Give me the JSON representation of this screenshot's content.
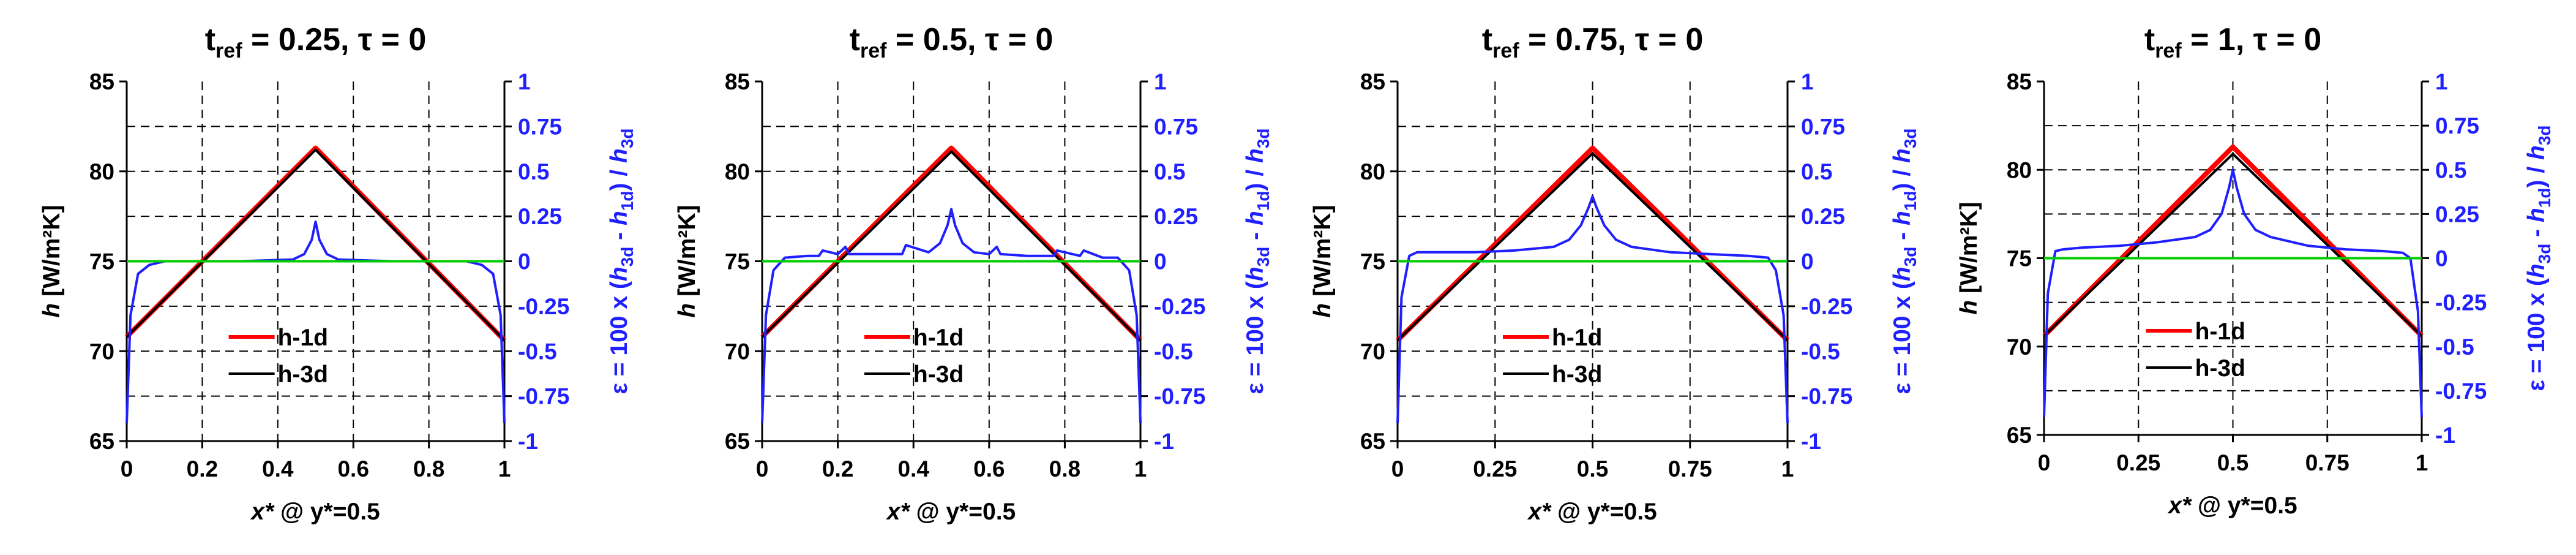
{
  "colors": {
    "h1d": "#ff0000",
    "h3d": "#000000",
    "eps": "#1f1fff",
    "zero": "#00cc00",
    "grid": "#000000"
  },
  "chart_data": [
    {
      "type": "line",
      "title": {
        "main": "t",
        "sub": "ref",
        "rest": " = 0.25, τ = 0"
      },
      "xticks": [
        "0",
        "0.2",
        "0.4",
        "0.6",
        "0.8",
        "1"
      ],
      "xtick_values": [
        0,
        0.2,
        0.4,
        0.6,
        0.8,
        1
      ],
      "xlim": [
        0,
        1
      ],
      "ylim": [
        65,
        85
      ],
      "y2lim": [
        -1,
        1
      ],
      "yticks": [
        "65",
        "70",
        "75",
        "80",
        "85"
      ],
      "y2ticks": [
        "-1",
        "-0.75",
        "-0.5",
        "-0.25",
        "0",
        "0.25",
        "0.5",
        "0.75",
        "1"
      ],
      "xlabel": {
        "var": "x*",
        "rest": " @ y*=0.5"
      },
      "ylabel": {
        "var": "h",
        "rest": " [W/m²K]"
      },
      "y2label": {
        "pre": "ε = 100 x (",
        "v1": "h",
        "s1": "3d",
        "mid": " - ",
        "v2": "h",
        "s2": "1d",
        "post": ") / ",
        "v3": "h",
        "s3": "3d"
      },
      "legend": [
        "h-1d",
        "h-3d"
      ],
      "legend_position": "center-bottom",
      "series": [
        {
          "name": "h-1d",
          "axis": "left",
          "x": [
            0,
            0.5,
            1
          ],
          "values": [
            70.8,
            81.3,
            70.6
          ]
        },
        {
          "name": "h-3d",
          "axis": "left",
          "x": [
            0,
            0.5,
            1
          ],
          "values": [
            70.8,
            81.2,
            70.6
          ]
        },
        {
          "name": "ε",
          "axis": "right",
          "x": [
            0,
            0.01,
            0.03,
            0.06,
            0.1,
            0.3,
            0.44,
            0.47,
            0.49,
            0.5,
            0.51,
            0.53,
            0.56,
            0.7,
            0.9,
            0.94,
            0.97,
            0.99,
            1
          ],
          "values": [
            -0.9,
            -0.3,
            -0.07,
            -0.02,
            0,
            0,
            0.01,
            0.04,
            0.12,
            0.22,
            0.12,
            0.04,
            0.01,
            0,
            0,
            -0.02,
            -0.07,
            -0.3,
            -0.9
          ]
        },
        {
          "name": "ε = 0",
          "axis": "right",
          "x": [
            0,
            1
          ],
          "values": [
            0,
            0
          ]
        }
      ]
    },
    {
      "type": "line",
      "title": {
        "main": "t",
        "sub": "ref",
        "rest": " = 0.5, τ = 0"
      },
      "xticks": [
        "0",
        "0.2",
        "0.4",
        "0.6",
        "0.8",
        "1"
      ],
      "xtick_values": [
        0,
        0.2,
        0.4,
        0.6,
        0.8,
        1
      ],
      "xlim": [
        0,
        1
      ],
      "ylim": [
        65,
        85
      ],
      "y2lim": [
        -1,
        1
      ],
      "yticks": [
        "65",
        "70",
        "75",
        "80",
        "85"
      ],
      "y2ticks": [
        "-1",
        "-0.75",
        "-0.5",
        "-0.25",
        "0",
        "0.25",
        "0.5",
        "0.75",
        "1"
      ],
      "xlabel": {
        "var": "x*",
        "rest": " @ y*=0.5"
      },
      "ylabel": {
        "var": "h",
        "rest": " [W/m²K]"
      },
      "y2label": {
        "pre": "ε = 100 x (",
        "v1": "h",
        "s1": "3d",
        "mid": " - ",
        "v2": "h",
        "s2": "1d",
        "post": ") / ",
        "v3": "h",
        "s3": "3d"
      },
      "legend": [
        "h-1d",
        "h-3d"
      ],
      "legend_position": "center-bottom",
      "series": [
        {
          "name": "h-1d",
          "axis": "left",
          "x": [
            0,
            0.5,
            1
          ],
          "values": [
            70.8,
            81.3,
            70.6
          ]
        },
        {
          "name": "h-3d",
          "axis": "left",
          "x": [
            0,
            0.5,
            1
          ],
          "values": [
            70.8,
            81.1,
            70.6
          ]
        },
        {
          "name": "ε",
          "axis": "right",
          "x": [
            0,
            0.01,
            0.03,
            0.06,
            0.12,
            0.15,
            0.16,
            0.2,
            0.22,
            0.23,
            0.3,
            0.37,
            0.38,
            0.44,
            0.47,
            0.49,
            0.5,
            0.51,
            0.53,
            0.56,
            0.6,
            0.62,
            0.63,
            0.7,
            0.77,
            0.78,
            0.84,
            0.85,
            0.9,
            0.94,
            0.97,
            0.99,
            1
          ],
          "values": [
            -0.9,
            -0.3,
            -0.05,
            0.02,
            0.03,
            0.03,
            0.06,
            0.04,
            0.08,
            0.04,
            0.04,
            0.04,
            0.09,
            0.05,
            0.1,
            0.2,
            0.29,
            0.2,
            0.1,
            0.05,
            0.04,
            0.08,
            0.04,
            0.03,
            0.03,
            0.06,
            0.03,
            0.06,
            0.02,
            0.02,
            -0.05,
            -0.3,
            -0.9
          ]
        },
        {
          "name": "ε = 0",
          "axis": "right",
          "x": [
            0,
            1
          ],
          "values": [
            0,
            0
          ]
        }
      ]
    },
    {
      "type": "line",
      "title": {
        "main": "t",
        "sub": "ref",
        "rest": " = 0.75, τ = 0"
      },
      "xticks": [
        "0",
        "0.25",
        "0.5",
        "0.75",
        "1"
      ],
      "xtick_values": [
        0,
        0.25,
        0.5,
        0.75,
        1
      ],
      "xlim": [
        0,
        1
      ],
      "ylim": [
        65,
        85
      ],
      "y2lim": [
        -1,
        1
      ],
      "yticks": [
        "65",
        "70",
        "75",
        "80",
        "85"
      ],
      "y2ticks": [
        "-1",
        "-0.75",
        "-0.5",
        "-0.25",
        "0",
        "0.25",
        "0.5",
        "0.75",
        "1"
      ],
      "xlabel": {
        "var": "x*",
        "rest": " @ y*=0.5"
      },
      "ylabel": {
        "var": "h",
        "rest": " [W/m²K]"
      },
      "y2label": {
        "pre": "ε = 100 x (",
        "v1": "h",
        "s1": "3d",
        "mid": " - ",
        "v2": "h",
        "s2": "1d",
        "post": ") / ",
        "v3": "h",
        "s3": "3d"
      },
      "legend": [
        "h-1d",
        "h-3d"
      ],
      "legend_position": "center-bottom",
      "series": [
        {
          "name": "h-1d",
          "axis": "left",
          "x": [
            0,
            0.5,
            1
          ],
          "values": [
            70.6,
            81.3,
            70.6
          ]
        },
        {
          "name": "h-3d",
          "axis": "left",
          "x": [
            0,
            0.5,
            1
          ],
          "values": [
            70.6,
            81.0,
            70.6
          ]
        },
        {
          "name": "ε",
          "axis": "right",
          "x": [
            0,
            0.01,
            0.03,
            0.05,
            0.1,
            0.2,
            0.3,
            0.4,
            0.44,
            0.47,
            0.49,
            0.5,
            0.51,
            0.53,
            0.56,
            0.6,
            0.7,
            0.8,
            0.9,
            0.95,
            0.97,
            0.99,
            1
          ],
          "values": [
            -0.9,
            -0.2,
            0.03,
            0.05,
            0.05,
            0.05,
            0.06,
            0.08,
            0.12,
            0.2,
            0.3,
            0.36,
            0.3,
            0.2,
            0.12,
            0.08,
            0.05,
            0.04,
            0.03,
            0.02,
            -0.05,
            -0.3,
            -0.9
          ]
        },
        {
          "name": "ε = 0",
          "axis": "right",
          "x": [
            0,
            1
          ],
          "values": [
            0,
            0
          ]
        }
      ]
    },
    {
      "type": "line",
      "title": {
        "main": "t",
        "sub": "ref",
        "rest": " = 1, τ = 0"
      },
      "xticks": [
        "0",
        "0.25",
        "0.5",
        "0.75",
        "1"
      ],
      "xtick_values": [
        0,
        0.25,
        0.5,
        0.75,
        1
      ],
      "xlim": [
        0,
        1
      ],
      "ylim": [
        65,
        85
      ],
      "y2lim": [
        -1,
        1
      ],
      "yticks": [
        "65",
        "70",
        "75",
        "80",
        "85"
      ],
      "y2ticks": [
        "-1",
        "-0.75",
        "-0.5",
        "-0.25",
        "0",
        "0.25",
        "0.5",
        "0.75",
        "1"
      ],
      "xlabel": {
        "var": "x*",
        "rest": " @ y*=0.5"
      },
      "ylabel": {
        "var": "h",
        "rest": " [W/m²K]"
      },
      "y2label": {
        "pre": "ε = 100 x (",
        "v1": "h",
        "s1": "3d",
        "mid": " - ",
        "v2": "h",
        "s2": "1d",
        "post": ") / ",
        "v3": "h",
        "s3": "3d"
      },
      "legend": [
        "h-1d",
        "h-3d"
      ],
      "legend_position": "center-bottom",
      "series": [
        {
          "name": "h-1d",
          "axis": "left",
          "x": [
            0,
            0.5,
            1
          ],
          "values": [
            70.6,
            81.3,
            70.6
          ]
        },
        {
          "name": "h-3d",
          "axis": "left",
          "x": [
            0,
            0.5,
            1
          ],
          "values": [
            70.6,
            80.9,
            70.6
          ]
        },
        {
          "name": "ε",
          "axis": "right",
          "x": [
            0,
            0.01,
            0.03,
            0.05,
            0.1,
            0.2,
            0.3,
            0.4,
            0.44,
            0.47,
            0.49,
            0.5,
            0.51,
            0.53,
            0.56,
            0.6,
            0.7,
            0.8,
            0.9,
            0.95,
            0.97,
            0.99,
            1
          ],
          "values": [
            -0.9,
            -0.2,
            0.04,
            0.05,
            0.06,
            0.07,
            0.09,
            0.12,
            0.16,
            0.25,
            0.4,
            0.5,
            0.4,
            0.25,
            0.16,
            0.12,
            0.07,
            0.05,
            0.04,
            0.03,
            0,
            -0.3,
            -0.9
          ]
        },
        {
          "name": "ε = 0",
          "axis": "right",
          "x": [
            0,
            1
          ],
          "values": [
            0,
            0
          ]
        }
      ]
    }
  ]
}
